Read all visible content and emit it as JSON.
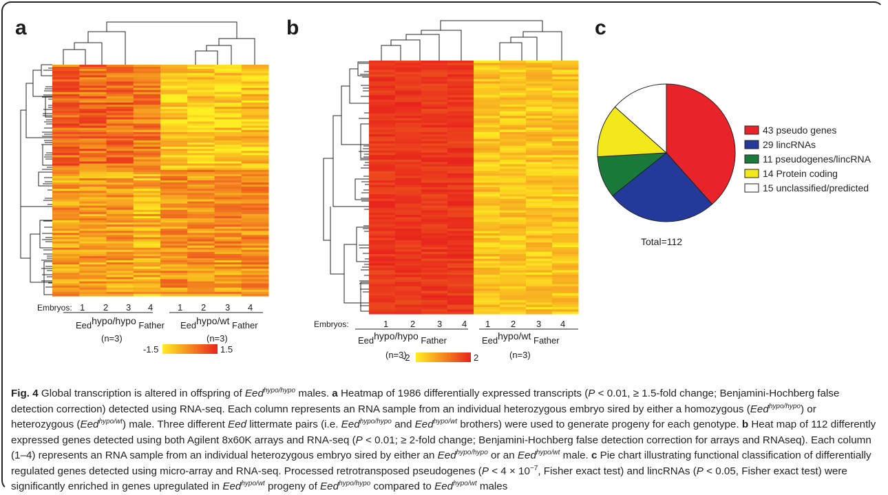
{
  "panels": {
    "a": {
      "label": "a",
      "embryos_label": "Embryos:",
      "embryos": [
        "1",
        "2",
        "3",
        "4",
        "1",
        "2",
        "3",
        "4"
      ],
      "group1": {
        "base": "Eed",
        "sup": "hypo/hypo",
        "suffix": "Father",
        "n": "(n=3)"
      },
      "group2": {
        "base": "Eed",
        "sup": "hypo/wt",
        "suffix": "Father",
        "n": "(n=3)"
      },
      "scale": {
        "min": "-1.5",
        "max": "1.5"
      }
    },
    "b": {
      "label": "b",
      "embryos_label": "Embryos:",
      "embryos": [
        "1",
        "2",
        "3",
        "4",
        "1",
        "2",
        "3",
        "4"
      ],
      "group1": {
        "base": "Eed",
        "sup": "hypo/hypo",
        "suffix": "Father",
        "n": "(n=3)"
      },
      "group2": {
        "base": "Eed",
        "sup": "hypo/wt",
        "suffix": "Father",
        "n": "(n=3)"
      },
      "scale": {
        "min": "-2",
        "max": "2"
      }
    },
    "c": {
      "label": "c",
      "total": "Total=112"
    }
  },
  "colors": {
    "low": "#ffee22",
    "high": "#e8241c",
    "pseudo": "#e8232a",
    "linc": "#233a9b",
    "mixed": "#1a7a3a",
    "coding": "#f2e81a",
    "unclassified": "#ffffff"
  },
  "chart_data": {
    "type": "pie",
    "labels": [
      "43 pseudo genes",
      "29 lincRNAs",
      "11 pseudogenes/lincRNA",
      "14 Protein coding",
      "15 unclassified/predicted"
    ],
    "values": [
      43,
      29,
      11,
      14,
      15
    ],
    "colors": [
      "#e8232a",
      "#233a9b",
      "#1a7a3a",
      "#f2e81a",
      "#ffffff"
    ],
    "legend": "right"
  },
  "caption": {
    "fig_label": "Fig. 4",
    "title": " Global transcription is altered in offspring of ",
    "t_eed": "Eed",
    "t_sup": "hypo/hypo",
    "t_end": " males.",
    "a_label": " a",
    "a1": " Heatmap of 1986 differentially expressed transcripts (",
    "a1_p": "P",
    "a2": " < 0.01, ≥ 1.5-fold change; Benjamini-Hochberg false detection correction) detected using RNA-seq. Each column represents an RNA sample from an individual heterozygous embryo sired by either a homozygous (",
    "a2_eed": "Eed",
    "a2_sup": "hypo/hypo",
    "a3": ") or heterozygous (",
    "a3_eed": "Eed",
    "a3_sup": "hypo/wt",
    "a4": ") male. Three different ",
    "a4_eed": "Eed",
    "a5": " littermate pairs (i.e. ",
    "a5_eed": "Eed",
    "a5_sup": "hypo/hypo",
    "a6": " and ",
    "a6_eed": "Eed",
    "a6_sup": "hypo/wt",
    "a7": " brothers) were used to generate progeny for each genotype.",
    "b_label": " b",
    "b1": " Heat map of 112 differently expressed genes detected using both Agilent 8x60K arrays and RNA-seq (",
    "b1_p": "P",
    "b2": " < 0.01; ≥ 2-fold change; Benjamini-Hochberg false detection correction for arrays and RNAseq). Each column (1–4) represents an RNA sample from an individual heterozygous embryo sired by either an ",
    "b2_eed": "Eed",
    "b2_sup": "hypo/hypo",
    "b3": " or an ",
    "b3_eed": "Eed",
    "b3_sup": "hypo/wt",
    "b4": " male.",
    "c_label": " c",
    "c1": " Pie chart illustrating functional classification of differentially regulated genes detected using micro-array and RNA-seq. Processed retrotransposed pseudogenes (",
    "c1_p": "P",
    "c2": " < 4 × 10",
    "c2_sup": "−7",
    "c3": ", Fisher exact test) and lincRNAs (",
    "c3_p": "P",
    "c4": " < 0.05, Fisher exact test) were significantly enriched in genes upregulated in ",
    "c4_eed": "Eed",
    "c4_sup": "hypo/wt",
    "c5": " progeny of ",
    "c5_eed": "Eed",
    "c5_sup": "hypo/hypo",
    "c6": " compared to ",
    "c6_eed": "Eed",
    "c6_sup": "hypo/wt",
    "c7": " males"
  }
}
